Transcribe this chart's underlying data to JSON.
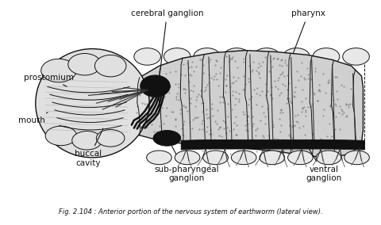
{
  "title": "Fig. 2.104 : Anterior portion of the nervous system of earthworm (lateral view).",
  "bg_color": "#ffffff",
  "labels": {
    "cerebral_ganglion": "cerebral ganglion",
    "pharynx": "pharynx",
    "prostomium": "prostomium",
    "mouth": "mouth",
    "buccal_cavity": "buccal\ncavity",
    "sub_pharyngeal": "sub-pharyngeal\nganglion",
    "ventral_ganglion": "ventral\nganglion"
  },
  "line_color": "#111111",
  "body_fill": "#c8c8c8",
  "stipple_color": "#666666",
  "head_fill": "#e8e8e8"
}
